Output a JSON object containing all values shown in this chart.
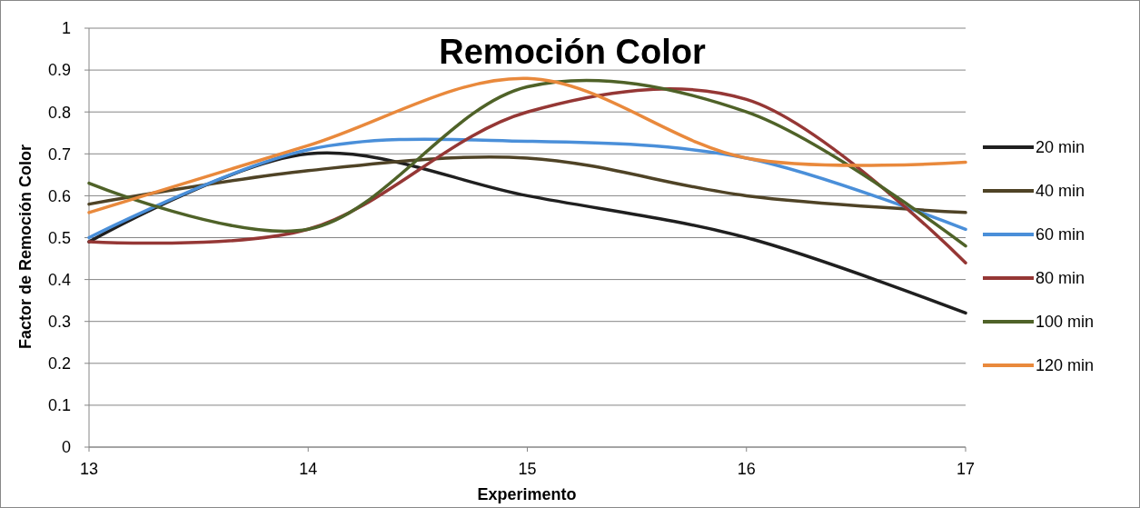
{
  "chart_data": {
    "type": "line",
    "title": "Remoción Color",
    "xlabel": "Experimento",
    "ylabel": "Factor de Remoción Color",
    "x": [
      13,
      14,
      15,
      16,
      17
    ],
    "series": [
      {
        "name": "20 min",
        "color": "#1f1f1f",
        "values": [
          0.49,
          0.7,
          0.6,
          0.5,
          0.32
        ]
      },
      {
        "name": "40 min",
        "color": "#4f4326",
        "values": [
          0.58,
          0.66,
          0.69,
          0.6,
          0.56
        ]
      },
      {
        "name": "60 min",
        "color": "#4a8fd9",
        "values": [
          0.5,
          0.71,
          0.73,
          0.69,
          0.52
        ]
      },
      {
        "name": "80 min",
        "color": "#953735",
        "values": [
          0.49,
          0.52,
          0.8,
          0.83,
          0.44
        ]
      },
      {
        "name": "100 min",
        "color": "#4f6228",
        "values": [
          0.63,
          0.52,
          0.86,
          0.8,
          0.48
        ]
      },
      {
        "name": "120 min",
        "color": "#e9893c",
        "values": [
          0.56,
          0.72,
          0.88,
          0.69,
          0.68
        ]
      }
    ],
    "xlim": [
      13,
      17
    ],
    "xticks": [
      13,
      14,
      15,
      16,
      17
    ],
    "ylim": [
      0,
      1
    ],
    "yticks": [
      0,
      0.1,
      0.2,
      0.3,
      0.4,
      0.5,
      0.6,
      0.7,
      0.8,
      0.9,
      1
    ],
    "grid": "y",
    "legend": "right",
    "marker": "none",
    "line_style": "solid"
  }
}
